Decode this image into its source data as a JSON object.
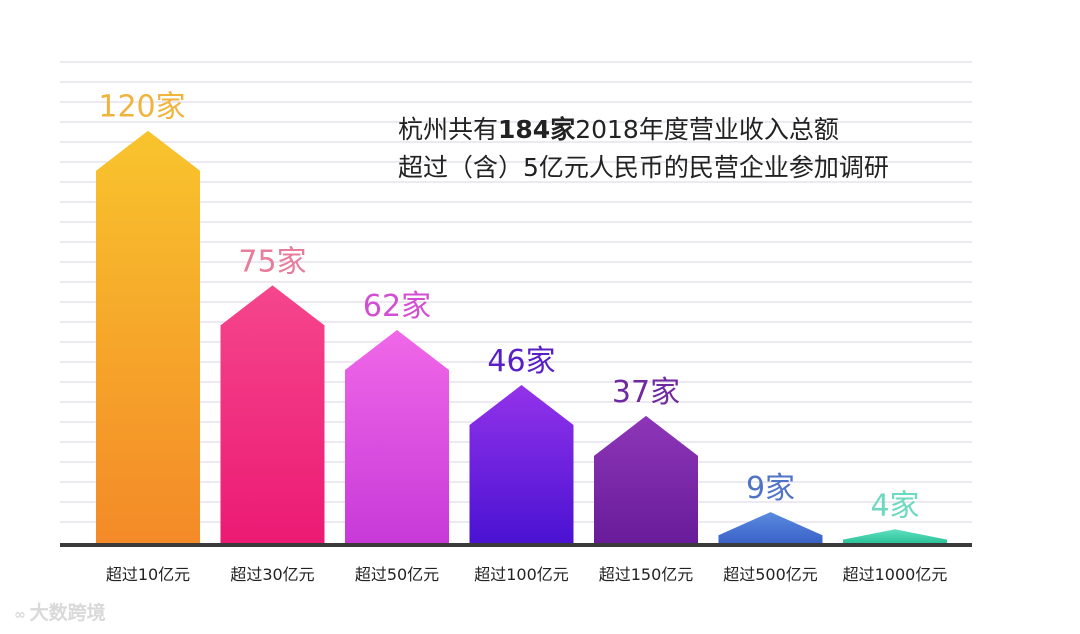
{
  "title": {
    "line1_prefix": "杭州共有",
    "line1_bold": "184家",
    "line1_suffix": "2018年度营业收入总额",
    "line2": "超过（含）5亿元人民币的民营企业参加调研"
  },
  "watermark": {
    "icon": "infinity-logo-icon",
    "text": "大数跨境"
  },
  "chart_data": {
    "type": "bar",
    "title": "杭州共有184家2018年度营业收入总额超过（含）5亿元人民币的民营企业参加调研",
    "xlabel": "",
    "ylabel": "",
    "ylim": [
      0,
      140
    ],
    "grid": true,
    "legend": "none",
    "categories": [
      "超过10亿元",
      "超过30亿元",
      "超过50亿元",
      "超过100亿元",
      "超过150亿元",
      "超过500亿元",
      "超过1000亿元"
    ],
    "values": [
      120,
      75,
      62,
      46,
      37,
      9,
      4
    ],
    "data_labels": [
      "120家",
      "75家",
      "62家",
      "46家",
      "37家",
      "9家",
      "4家"
    ],
    "colors": {
      "bars_top": [
        "#f8c42d",
        "#f5468c",
        "#f068e8",
        "#9333ea",
        "#8e36b8",
        "#5b8be0",
        "#5fe0c0"
      ],
      "bars_bottom": [
        "#f48a28",
        "#ec1a74",
        "#c83ad8",
        "#4a12d2",
        "#681c9a",
        "#3a62c8",
        "#2cc39a"
      ],
      "labels": [
        "#f2b33d",
        "#e87c9c",
        "#d24ed2",
        "#5a1fc4",
        "#6f2aa0",
        "#4f73c6",
        "#6dd9c0"
      ],
      "grid": "#e6e2ee",
      "axis": "#3a3a3a"
    }
  }
}
